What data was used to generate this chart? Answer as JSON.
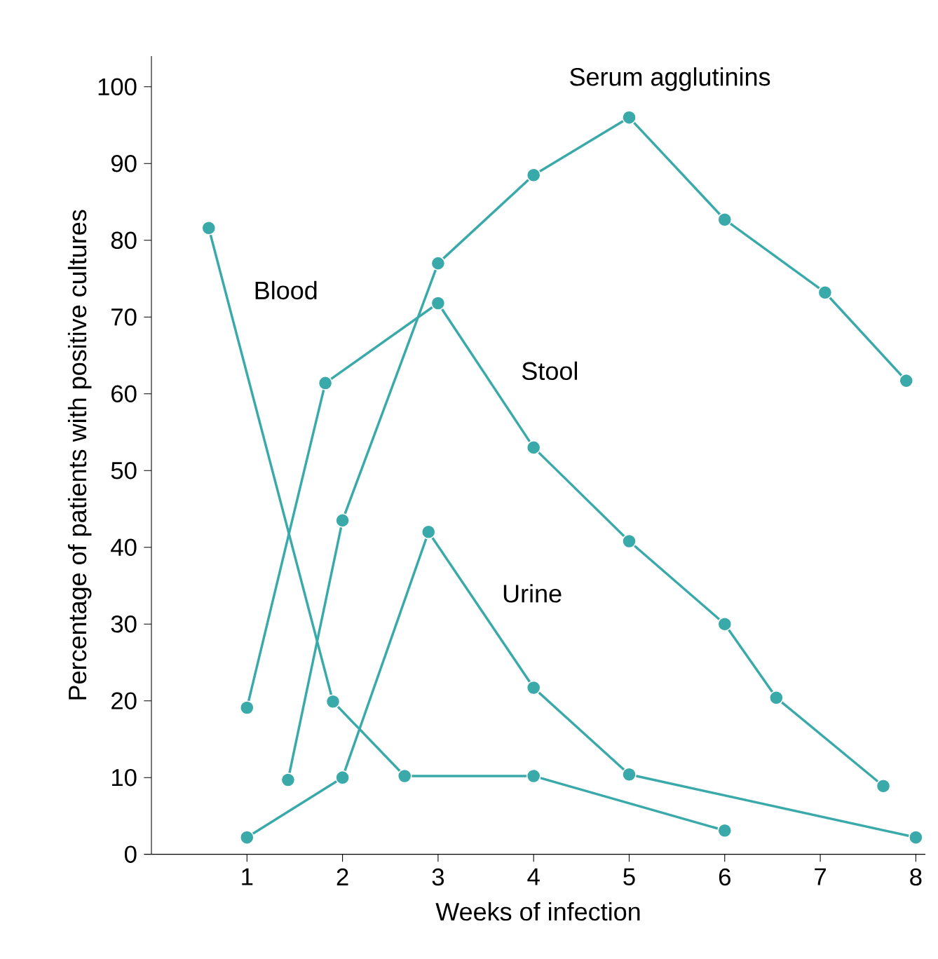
{
  "chart_data": {
    "type": "line",
    "xlabel": "Weeks of infection",
    "ylabel": "Percentage of patients with positive cultures",
    "xlim": [
      0,
      8.1
    ],
    "ylim": [
      0,
      104
    ],
    "xticks": [
      1,
      2,
      3,
      4,
      5,
      6,
      7,
      8
    ],
    "yticks": [
      0,
      10,
      20,
      30,
      40,
      50,
      60,
      70,
      80,
      90,
      100
    ],
    "marker": "circle",
    "line_style": "solid",
    "grid": false,
    "legend": false,
    "series": [
      {
        "name": "Serum agglutinins",
        "color": "#3aa9a9",
        "x": [
          1.43,
          2,
          3,
          4,
          5,
          6,
          7.05,
          7.9
        ],
        "values": [
          9.7,
          43.5,
          77,
          88.5,
          96,
          82.7,
          73.2,
          61.7
        ]
      },
      {
        "name": "Blood",
        "color": "#3aa9a9",
        "x": [
          0.6,
          1.9,
          2.65,
          4,
          6
        ],
        "values": [
          81.6,
          19.9,
          10.2,
          10.2,
          3.1
        ]
      },
      {
        "name": "Stool",
        "color": "#3aa9a9",
        "x": [
          1,
          1.82,
          3,
          4,
          5,
          6,
          6.54,
          7.66
        ],
        "values": [
          19.1,
          61.4,
          71.8,
          53,
          40.8,
          30,
          20.4,
          8.9
        ]
      },
      {
        "name": "Urine",
        "color": "#3aa9a9",
        "x": [
          1,
          2,
          2.9,
          4,
          5,
          8
        ],
        "values": [
          2.2,
          10,
          42,
          21.7,
          10.4,
          2.2
        ]
      }
    ]
  }
}
